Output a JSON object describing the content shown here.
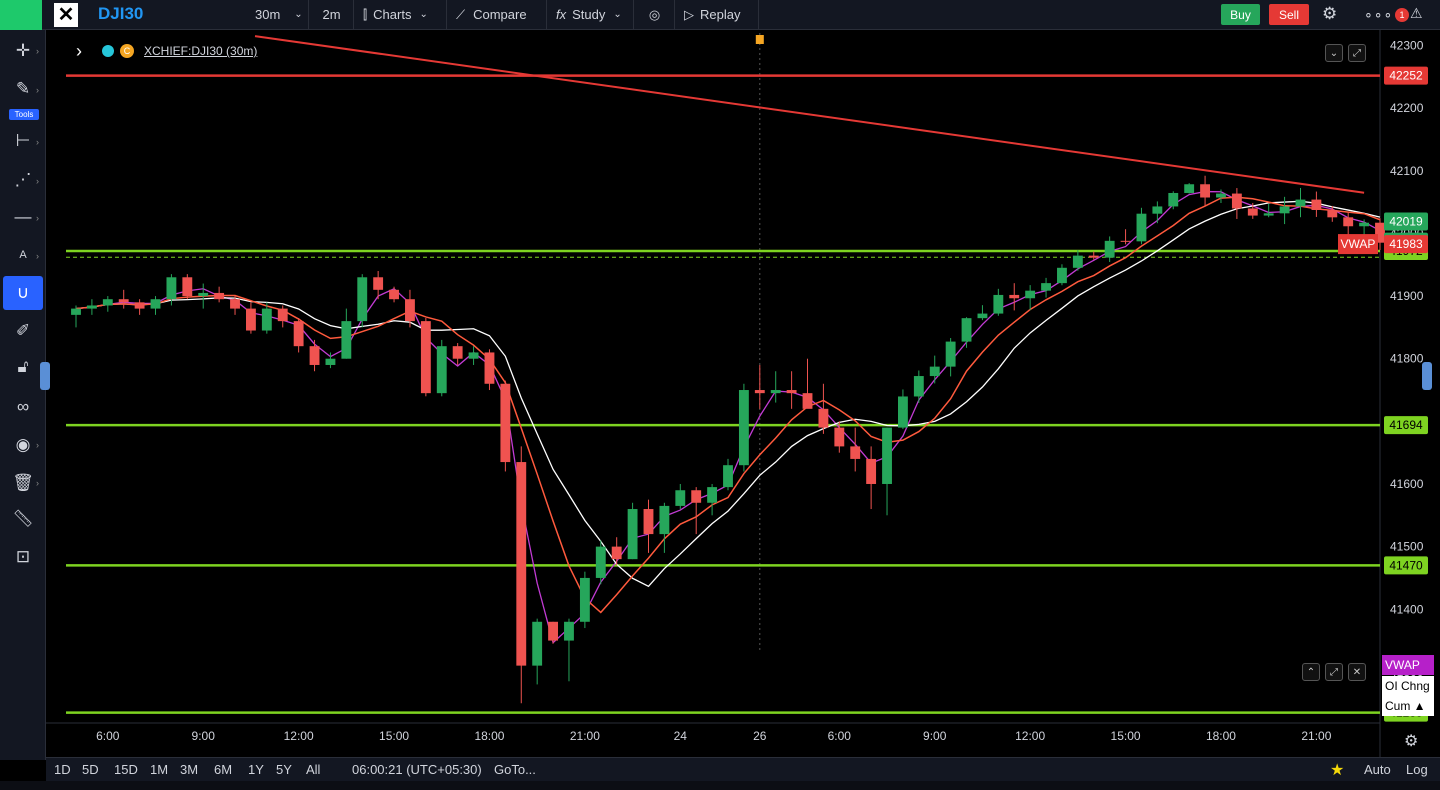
{
  "toolbar": {
    "symbol": "DJI30",
    "interval": "30m",
    "interval2": "2m",
    "charts_label": "Charts",
    "compare_label": "Compare",
    "study_label": "Study",
    "replay_label": "Replay",
    "buy_label": "Buy",
    "sell_label": "Sell",
    "notification_count": "1"
  },
  "sidebar": {
    "tools_label": "Tools",
    "icons": [
      "crosshair-icon",
      "pencil-icon",
      "measure-lines-icon",
      "pattern-icon",
      "horizontal-line-icon",
      "text-icon",
      "magnet-icon",
      "brush-icon",
      "lock-icon",
      "link-icon",
      "eye-icon",
      "trash-icon",
      "ruler-icon",
      "zoom-icon"
    ]
  },
  "legend": {
    "title": "XCHIEF:DJI30 (30m)"
  },
  "bottombar": {
    "ranges": [
      "1D",
      "5D",
      "15D",
      "1M",
      "3M",
      "6M",
      "1Y",
      "5Y",
      "All"
    ],
    "time": "06:00:21 (UTC+05:30)",
    "goto": "GoTo...",
    "auto_label": "Auto",
    "log_label": "Log"
  },
  "indicators": {
    "vwap": "VWAP",
    "oi": "OI Chng",
    "cum": "Cum ▲"
  },
  "colors": {
    "up": "#26a65b",
    "down": "#ef5350",
    "hline_green": "#7ed321",
    "hline_red": "#e53935",
    "vwap": "#ff5a3d",
    "ma_purple": "#c23bd4",
    "ma_white": "#ffffff"
  },
  "chart_data": {
    "type": "candlestick",
    "ylim": [
      41220,
      42320
    ],
    "yticks": [
      41300,
      41400,
      41500,
      41600,
      41700,
      41800,
      41900,
      42000,
      42100,
      42200,
      42300
    ],
    "xticks": [
      {
        "i": 2,
        "label": "6:00"
      },
      {
        "i": 8,
        "label": "9:00"
      },
      {
        "i": 14,
        "label": "12:00"
      },
      {
        "i": 20,
        "label": "15:00"
      },
      {
        "i": 26,
        "label": "18:00"
      },
      {
        "i": 32,
        "label": "21:00"
      },
      {
        "i": 38,
        "label": "24"
      },
      {
        "i": 43,
        "label": "26"
      },
      {
        "i": 48,
        "label": "6:00"
      },
      {
        "i": 54,
        "label": "9:00"
      },
      {
        "i": 60,
        "label": "12:00"
      },
      {
        "i": 66,
        "label": "15:00"
      },
      {
        "i": 72,
        "label": "18:00"
      },
      {
        "i": 78,
        "label": "21:00"
      }
    ],
    "candles": [
      [
        41870,
        41885,
        41850,
        41880
      ],
      [
        41880,
        41895,
        41870,
        41885
      ],
      [
        41885,
        41900,
        41875,
        41895
      ],
      [
        41895,
        41910,
        41880,
        41890
      ],
      [
        41890,
        41895,
        41870,
        41880
      ],
      [
        41880,
        41900,
        41870,
        41895
      ],
      [
        41895,
        41935,
        41885,
        41930
      ],
      [
        41930,
        41935,
        41895,
        41900
      ],
      [
        41900,
        41920,
        41880,
        41905
      ],
      [
        41905,
        41915,
        41890,
        41895
      ],
      [
        41895,
        41900,
        41870,
        41880
      ],
      [
        41880,
        41890,
        41840,
        41845
      ],
      [
        41845,
        41890,
        41840,
        41880
      ],
      [
        41880,
        41885,
        41850,
        41860
      ],
      [
        41860,
        41865,
        41810,
        41820
      ],
      [
        41820,
        41830,
        41780,
        41790
      ],
      [
        41790,
        41810,
        41785,
        41800
      ],
      [
        41800,
        41880,
        41800,
        41860
      ],
      [
        41860,
        41935,
        41850,
        41930
      ],
      [
        41930,
        41940,
        41895,
        41910
      ],
      [
        41910,
        41915,
        41890,
        41895
      ],
      [
        41895,
        41910,
        41850,
        41860
      ],
      [
        41860,
        41865,
        41740,
        41745
      ],
      [
        41745,
        41830,
        41740,
        41820
      ],
      [
        41820,
        41825,
        41790,
        41800
      ],
      [
        41800,
        41820,
        41790,
        41810
      ],
      [
        41810,
        41815,
        41750,
        41760
      ],
      [
        41760,
        41765,
        41620,
        41635
      ],
      [
        41635,
        41660,
        41250,
        41310
      ],
      [
        41310,
        41385,
        41280,
        41380
      ],
      [
        41380,
        41380,
        41345,
        41350
      ],
      [
        41350,
        41385,
        41285,
        41380
      ],
      [
        41380,
        41460,
        41370,
        41450
      ],
      [
        41450,
        41510,
        41440,
        41500
      ],
      [
        41500,
        41515,
        41470,
        41480
      ],
      [
        41480,
        41570,
        41480,
        41560
      ],
      [
        41560,
        41575,
        41490,
        41520
      ],
      [
        41520,
        41570,
        41490,
        41565
      ],
      [
        41565,
        41600,
        41560,
        41590
      ],
      [
        41590,
        41595,
        41520,
        41570
      ],
      [
        41570,
        41600,
        41550,
        41595
      ],
      [
        41595,
        41640,
        41590,
        41630
      ],
      [
        41630,
        41760,
        41620,
        41750
      ],
      [
        41750,
        41790,
        41720,
        41745
      ],
      [
        41745,
        41780,
        41730,
        41750
      ],
      [
        41750,
        41780,
        41720,
        41745
      ],
      [
        41745,
        41800,
        41730,
        41720
      ],
      [
        41720,
        41760,
        41680,
        41690
      ],
      [
        41690,
        41700,
        41650,
        41660
      ],
      [
        41660,
        41690,
        41620,
        41640
      ],
      [
        41640,
        41660,
        41560,
        41600
      ],
      [
        41600,
        41690,
        41550,
        41690
      ]
    ],
    "hlines": [
      {
        "price": 42252,
        "color": "red",
        "label": "42252"
      },
      {
        "price": 41972,
        "color": "green",
        "label": "41972"
      },
      {
        "price": 41694,
        "color": "green",
        "label": "41694"
      },
      {
        "price": 41470,
        "color": "green",
        "label": "41470"
      },
      {
        "price": 41235,
        "color": "green",
        "label": "41235"
      }
    ],
    "price_labels": [
      {
        "price": 41987,
        "color": "green",
        "label": "41987"
      },
      {
        "price": 41983,
        "color": "red",
        "label": "41983"
      },
      {
        "price": 42019,
        "color": "green",
        "label": "42019"
      }
    ],
    "vwap_tag": "VWAP"
  }
}
